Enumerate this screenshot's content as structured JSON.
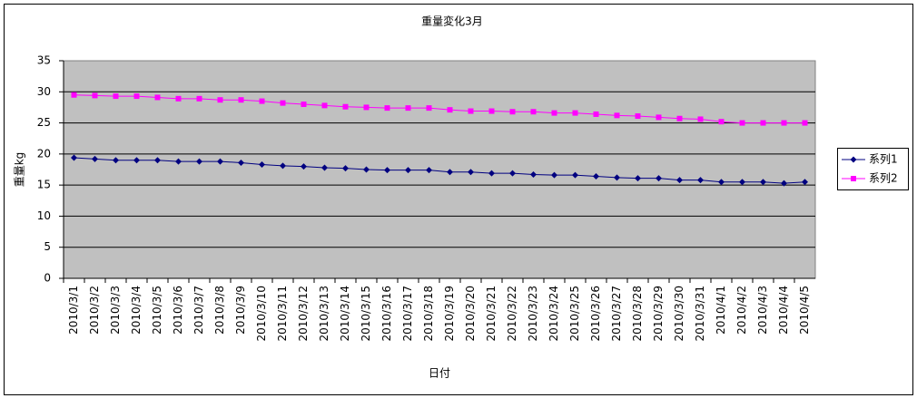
{
  "chart_data": {
    "type": "line",
    "title": "重量変化3月",
    "y_label": "重量kg",
    "x_label": "日付",
    "categories": [
      "2010/3/1",
      "2010/3/2",
      "2010/3/3",
      "2010/3/4",
      "2010/3/5",
      "2010/3/6",
      "2010/3/7",
      "2010/3/8",
      "2010/3/9",
      "2010/3/10",
      "2010/3/11",
      "2010/3/12",
      "2010/3/13",
      "2010/3/14",
      "2010/3/15",
      "2010/3/16",
      "2010/3/17",
      "2010/3/18",
      "2010/3/19",
      "2010/3/20",
      "2010/3/21",
      "2010/3/22",
      "2010/3/23",
      "2010/3/24",
      "2010/3/25",
      "2010/3/26",
      "2010/3/27",
      "2010/3/28",
      "2010/3/29",
      "2010/3/30",
      "2010/3/31",
      "2010/4/1",
      "2010/4/2",
      "2010/4/3",
      "2010/4/4",
      "2010/4/5"
    ],
    "series": [
      {
        "name": "系列1",
        "color": "#000080",
        "marker": "diamond",
        "values": [
          19.4,
          19.2,
          19.0,
          19.0,
          19.0,
          18.8,
          18.8,
          18.8,
          18.6,
          18.3,
          18.1,
          18.0,
          17.8,
          17.7,
          17.5,
          17.4,
          17.4,
          17.4,
          17.1,
          17.1,
          16.9,
          16.9,
          16.7,
          16.6,
          16.6,
          16.4,
          16.2,
          16.1,
          16.1,
          15.8,
          15.8,
          15.5,
          15.5,
          15.5,
          15.3,
          15.5
        ]
      },
      {
        "name": "系列2",
        "color": "#ff00ff",
        "marker": "square",
        "values": [
          29.5,
          29.4,
          29.3,
          29.3,
          29.1,
          28.9,
          28.9,
          28.7,
          28.7,
          28.5,
          28.2,
          28.0,
          27.8,
          27.6,
          27.5,
          27.4,
          27.4,
          27.4,
          27.1,
          26.9,
          26.9,
          26.8,
          26.8,
          26.6,
          26.6,
          26.4,
          26.2,
          26.1,
          25.9,
          25.7,
          25.6,
          25.2,
          25.0,
          25.0,
          25.0,
          25.0
        ]
      }
    ],
    "ylim": [
      0,
      35
    ],
    "yticks": [
      0,
      5,
      10,
      15,
      20,
      25,
      30,
      35
    ],
    "grid": true,
    "legend": "right"
  }
}
